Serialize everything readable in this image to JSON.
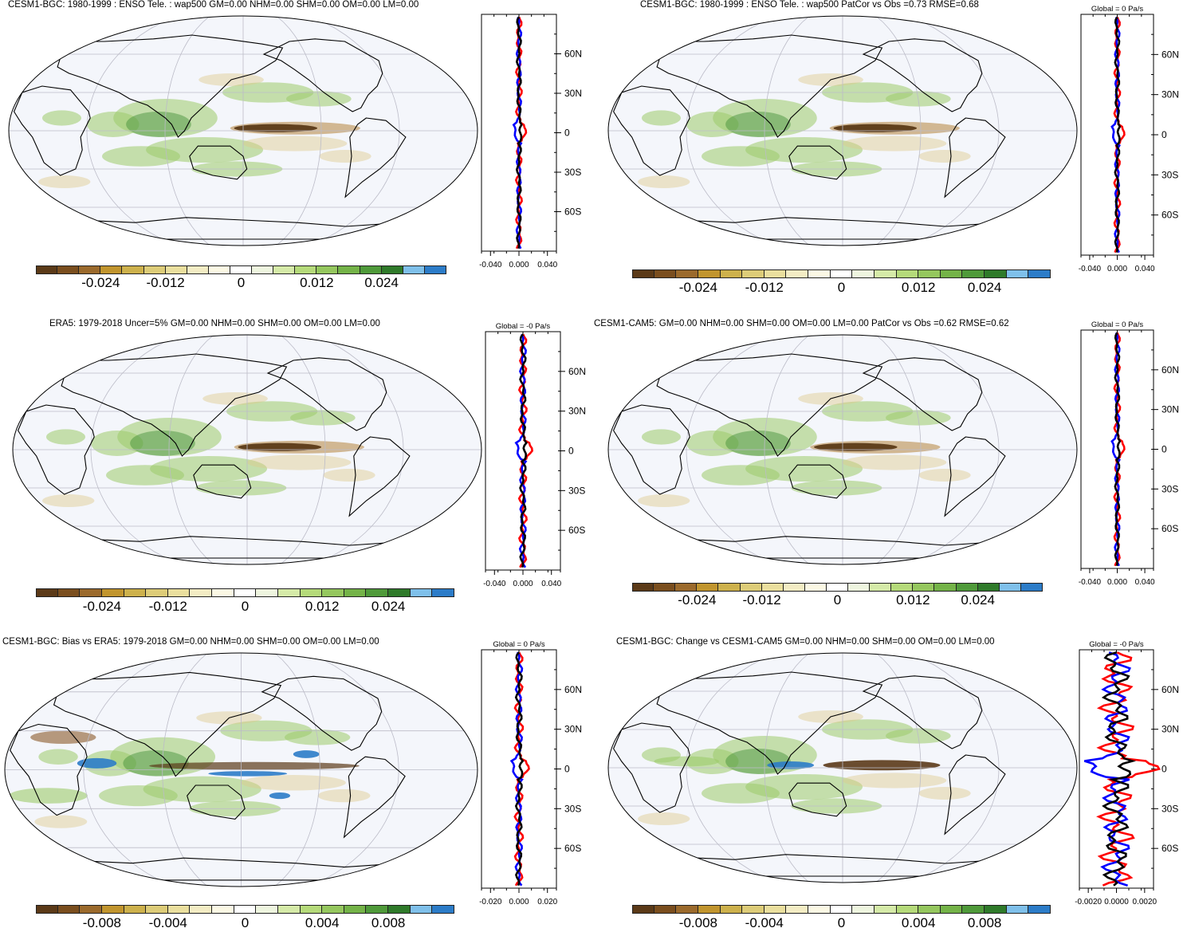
{
  "palette_main": [
    "#5b3a18",
    "#7a4e1e",
    "#9b6a2c",
    "#c1952e",
    "#cdb14c",
    "#ddcc78",
    "#eadf9e",
    "#f3ecc4",
    "#fbf8e4",
    "#ffffff",
    "#eef5df",
    "#d5eaa8",
    "#b5da7a",
    "#95c75e",
    "#74b348",
    "#4f9a3a",
    "#2f7a2a",
    "#7fc0ea",
    "#2c7cc8"
  ],
  "colors": {
    "ocean": "#f4f6fb",
    "grid": "#bcbcc8",
    "coast": "#000000",
    "land_green": "#9ccb6a",
    "dark_green": "#3f8c34",
    "brown": "#5b3a18",
    "tan": "#ddc98c",
    "blue": "#2c7cc8",
    "line_black": "#000000",
    "line_red": "#ff0000",
    "line_blue": "#0000ff"
  },
  "panels": [
    {
      "id": "p1",
      "title": "CESM1-BGC: 1980-1999 : ENSO Tele. : wap500 GM=0.00 NHM=0.00 SHM=0.00 OM=0.00 LM=0.00",
      "side_title": "",
      "lat_labels": [
        "60N",
        "30N",
        "0",
        "30S",
        "60S"
      ],
      "x_labels": [
        "-0.040",
        "0.000",
        "0.040"
      ],
      "colorbar_labels": [
        "-0.024",
        "-0.012",
        "0",
        "0.012",
        "0.024"
      ],
      "variant": "enso",
      "line_amp": 1
    },
    {
      "id": "p2",
      "title": "CESM1-BGC: 1980-1999 : ENSO Tele. : wap500 PatCor vs Obs =0.73 RMSE=0.68",
      "side_title": "Global = 0 Pa/s",
      "lat_labels": [
        "60N",
        "30N",
        "0",
        "30S",
        "60S"
      ],
      "x_labels": [
        "-0.040",
        "0.000",
        "0.040"
      ],
      "colorbar_labels": [
        "-0.024",
        "-0.012",
        "0",
        "0.012",
        "0.024"
      ],
      "variant": "enso",
      "line_amp": 1
    },
    {
      "id": "p3",
      "title": "ERA5: 1979-2018 Uncer=5% GM=0.00 NHM=0.00 SHM=0.00 OM=0.00 LM=0.00",
      "side_title": "Global = -0 Pa/s",
      "lat_labels": [
        "60N",
        "30N",
        "0",
        "30S",
        "60S"
      ],
      "x_labels": [
        "-0.040",
        "0.000",
        "0.040"
      ],
      "colorbar_labels": [
        "-0.024",
        "-0.012",
        "0",
        "0.012",
        "0.024"
      ],
      "variant": "enso",
      "line_amp": 1.3
    },
    {
      "id": "p4",
      "title": "CESM1-CAM5: GM=0.00 NHM=0.00 SHM=0.00 OM=0.00 LM=0.00 PatCor vs Obs =0.62 RMSE=0.62",
      "side_title": "Global = 0 Pa/s",
      "lat_labels": [
        "60N",
        "30N",
        "0",
        "30S",
        "60S"
      ],
      "x_labels": [
        "-0.040",
        "0.000",
        "0.040"
      ],
      "colorbar_labels": [
        "-0.024",
        "-0.012",
        "0",
        "0.012",
        "0.024"
      ],
      "variant": "enso2",
      "line_amp": 1
    },
    {
      "id": "p5",
      "title": "CESM1-BGC: Bias vs ERA5: 1979-2018 GM=0.00 NHM=0.00 SHM=0.00 OM=0.00 LM=0.00",
      "side_title": "Global = 0 Pa/s",
      "lat_labels": [
        "60N",
        "30N",
        "0",
        "30S",
        "60S"
      ],
      "x_labels": [
        "-0.020",
        "0.000",
        "0.020"
      ],
      "colorbar_labels": [
        "-0.008",
        "-0.004",
        "0",
        "0.004",
        "0.008"
      ],
      "variant": "bias",
      "line_amp": 1.4
    },
    {
      "id": "p6",
      "title": "CESM1-BGC: Change vs CESM1-CAM5 GM=0.00 NHM=0.00 SHM=0.00 OM=0.00 LM=0.00",
      "side_title": "Global = -0 Pa/s",
      "lat_labels": [
        "60N",
        "30N",
        "0",
        "30S",
        "60S"
      ],
      "x_labels": [
        "-0.0020",
        "0.0000",
        "0.0020"
      ],
      "colorbar_labels": [
        "-0.008",
        "-0.004",
        "0",
        "0.004",
        "0.008"
      ],
      "variant": "change",
      "line_amp": 6
    }
  ]
}
